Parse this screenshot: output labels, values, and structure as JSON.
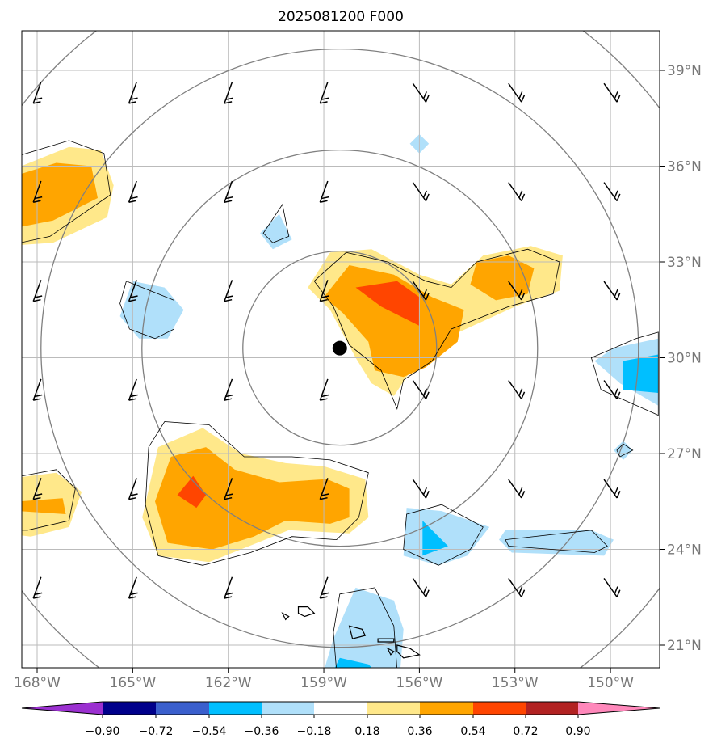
{
  "chart_data": {
    "type": "contour-map",
    "title": "2025081200 F000",
    "lon_range": [
      -169,
      -148.5
    ],
    "lat_range": [
      20.2,
      40.3
    ],
    "x_tick_labels": [
      "168°W",
      "165°W",
      "162°W",
      "159°W",
      "156°W",
      "153°W",
      "150°W"
    ],
    "x_ticks": [
      -168,
      -165,
      -162,
      -159,
      -156,
      -153,
      -150
    ],
    "y_tick_labels": [
      "21°N",
      "24°N",
      "27°N",
      "30°N",
      "33°N",
      "36°N",
      "39°N"
    ],
    "y_ticks": [
      21,
      24,
      27,
      30,
      33,
      36,
      39
    ],
    "grid": true,
    "center_marker": {
      "lon": -158.5,
      "lat": 30.3
    },
    "range_rings_center": {
      "lon": -158.5,
      "lat": 30.3
    },
    "colorbar": {
      "tick_labels": [
        "−0.90",
        "−0.72",
        "−0.54",
        "−0.36",
        "−0.18",
        "0.18",
        "0.36",
        "0.54",
        "0.72",
        "0.90"
      ],
      "colors": [
        "#9b30d0",
        "#00008b",
        "#3a5fcd",
        "#00bfff",
        "#b0e0fa",
        "#ffffff",
        "#ffe88a",
        "#ffa500",
        "#ff4500",
        "#b22222",
        "#ff88bb"
      ],
      "extend": "both"
    },
    "shaded_regions": [
      {
        "level": "0.18–0.36",
        "color": "#ffe88a",
        "polygon": [
          [
            -169,
            35.8
          ],
          [
            -167,
            36.6
          ],
          [
            -166,
            36.5
          ],
          [
            -165.6,
            35.4
          ],
          [
            -165.8,
            34.4
          ],
          [
            -167.5,
            33.6
          ],
          [
            -169,
            33.5
          ]
        ]
      },
      {
        "level": "0.36–0.54",
        "color": "#ffa500",
        "polygon": [
          [
            -169,
            35.6
          ],
          [
            -167.4,
            36.1
          ],
          [
            -166.3,
            36.0
          ],
          [
            -166.1,
            35.0
          ],
          [
            -167.5,
            34.3
          ],
          [
            -169,
            34.0
          ]
        ]
      },
      {
        "level": "0.18–0.36",
        "color": "#ffe88a",
        "polygon": [
          [
            -159.5,
            32.2
          ],
          [
            -158.8,
            33.3
          ],
          [
            -157.5,
            33.4
          ],
          [
            -156,
            32.6
          ],
          [
            -155,
            32.3
          ],
          [
            -154,
            33.2
          ],
          [
            -152.5,
            33.5
          ],
          [
            -151.5,
            33.2
          ],
          [
            -151.6,
            32.1
          ],
          [
            -153.0,
            31.6
          ],
          [
            -155.2,
            30.6
          ],
          [
            -156.2,
            29.7
          ],
          [
            -156.8,
            28.8
          ],
          [
            -157.5,
            29.2
          ],
          [
            -158.0,
            30.0
          ],
          [
            -158.8,
            31.5
          ]
        ]
      },
      {
        "level": "0.36–0.54",
        "color": "#ffa500",
        "polygon": [
          [
            -159.0,
            31.9
          ],
          [
            -158.2,
            32.9
          ],
          [
            -156.8,
            32.6
          ],
          [
            -155.6,
            31.9
          ],
          [
            -154.6,
            31.5
          ],
          [
            -154.8,
            30.5
          ],
          [
            -155.8,
            29.7
          ],
          [
            -156.5,
            29.4
          ],
          [
            -157.4,
            29.6
          ],
          [
            -157.6,
            30.5
          ],
          [
            -158.4,
            31.4
          ]
        ]
      },
      {
        "level": "0.36–0.54",
        "color": "#ffa500",
        "polygon": [
          [
            -154.2,
            33.0
          ],
          [
            -153.2,
            33.2
          ],
          [
            -152.4,
            32.8
          ],
          [
            -152.6,
            32.0
          ],
          [
            -153.6,
            31.8
          ],
          [
            -154.4,
            32.3
          ]
        ]
      },
      {
        "level": "0.54–0.72",
        "color": "#ff4500",
        "polygon": [
          [
            -158.0,
            32.2
          ],
          [
            -156.7,
            32.4
          ],
          [
            -156.0,
            31.9
          ],
          [
            -156.0,
            31.0
          ],
          [
            -157.2,
            31.6
          ]
        ]
      },
      {
        "level": "0.18–0.36",
        "color": "#ffe88a",
        "polygon": [
          [
            -164.2,
            27.2
          ],
          [
            -162.8,
            27.8
          ],
          [
            -161.6,
            27.0
          ],
          [
            -160.2,
            26.7
          ],
          [
            -159.0,
            26.6
          ],
          [
            -157.7,
            26.2
          ],
          [
            -157.6,
            25.0
          ],
          [
            -158.2,
            24.5
          ],
          [
            -160.1,
            24.6
          ],
          [
            -161.1,
            24.2
          ],
          [
            -162.6,
            23.6
          ],
          [
            -164.2,
            23.8
          ],
          [
            -164.7,
            25.0
          ]
        ]
      },
      {
        "level": "0.36–0.54",
        "color": "#ffa500",
        "polygon": [
          [
            -163.8,
            26.9
          ],
          [
            -162.7,
            27.2
          ],
          [
            -161.8,
            26.5
          ],
          [
            -160.4,
            26.1
          ],
          [
            -158.9,
            26.2
          ],
          [
            -158.2,
            25.9
          ],
          [
            -158.2,
            25.0
          ],
          [
            -158.8,
            24.8
          ],
          [
            -160.2,
            24.9
          ],
          [
            -161.2,
            24.4
          ],
          [
            -162.5,
            24.0
          ],
          [
            -163.9,
            24.2
          ],
          [
            -164.3,
            25.5
          ]
        ]
      },
      {
        "level": "0.54–0.72",
        "color": "#ff4500",
        "polygon": [
          [
            -163.1,
            26.3
          ],
          [
            -162.7,
            25.7
          ],
          [
            -163.0,
            25.3
          ],
          [
            -163.6,
            25.7
          ]
        ]
      },
      {
        "level": "0.18–0.36",
        "color": "#ffe88a",
        "polygon": [
          [
            -169,
            26.2
          ],
          [
            -167.4,
            26.4
          ],
          [
            -166.6,
            25.8
          ],
          [
            -167.0,
            24.7
          ],
          [
            -168.2,
            24.4
          ],
          [
            -169,
            24.5
          ]
        ]
      },
      {
        "level": "0.36–0.54",
        "color": "#ffa500",
        "polygon": [
          [
            -168.6,
            25.5
          ],
          [
            -167.2,
            25.6
          ],
          [
            -167.1,
            25.1
          ],
          [
            -168.6,
            25.2
          ]
        ]
      },
      {
        "level": "-0.36–-0.18",
        "color": "#b0e0fa",
        "polygon": [
          [
            -165.0,
            32.4
          ],
          [
            -164.0,
            32.2
          ],
          [
            -163.4,
            31.5
          ],
          [
            -163.9,
            30.6
          ],
          [
            -164.8,
            30.6
          ],
          [
            -165.4,
            31.3
          ]
        ]
      },
      {
        "level": "-0.36–-0.18",
        "color": "#b0e0fa",
        "polygon": [
          [
            -160.4,
            34.5
          ],
          [
            -160.0,
            33.7
          ],
          [
            -160.6,
            33.4
          ],
          [
            -161.0,
            33.9
          ]
        ]
      },
      {
        "level": "-0.36–-0.18",
        "color": "#b0e0fa",
        "polygon": [
          [
            -156.0,
            37.0
          ],
          [
            -155.7,
            36.7
          ],
          [
            -156.0,
            36.4
          ],
          [
            -156.3,
            36.7
          ]
        ]
      },
      {
        "level": "-0.36–-0.18",
        "color": "#b0e0fa",
        "polygon": [
          [
            -148.5,
            30.6
          ],
          [
            -149.9,
            30.3
          ],
          [
            -150.5,
            29.9
          ],
          [
            -149.7,
            29.2
          ],
          [
            -148.5,
            28.5
          ]
        ]
      },
      {
        "level": "-0.54–-0.36",
        "color": "#00bfff",
        "polygon": [
          [
            -148.5,
            30.1
          ],
          [
            -149.6,
            29.9
          ],
          [
            -149.6,
            29.0
          ],
          [
            -148.5,
            28.9
          ]
        ]
      },
      {
        "level": "-0.36–-0.18",
        "color": "#b0e0fa",
        "polygon": [
          [
            -149.6,
            27.4
          ],
          [
            -149.3,
            27.1
          ],
          [
            -149.6,
            26.8
          ],
          [
            -149.9,
            27.1
          ]
        ]
      },
      {
        "level": "-0.36–-0.18",
        "color": "#b0e0fa",
        "polygon": [
          [
            -156.4,
            25.3
          ],
          [
            -155.3,
            25.2
          ],
          [
            -153.8,
            24.7
          ],
          [
            -154.5,
            23.8
          ],
          [
            -155.4,
            23.5
          ],
          [
            -156.5,
            23.8
          ]
        ]
      },
      {
        "level": "-0.54–-0.36",
        "color": "#00bfff",
        "polygon": [
          [
            -155.9,
            24.9
          ],
          [
            -155.1,
            24.1
          ],
          [
            -155.9,
            23.8
          ]
        ]
      },
      {
        "level": "-0.36–-0.18",
        "color": "#b0e0fa",
        "polygon": [
          [
            -153.3,
            24.6
          ],
          [
            -150.6,
            24.6
          ],
          [
            -149.9,
            24.3
          ],
          [
            -150.2,
            23.8
          ],
          [
            -153.1,
            23.9
          ],
          [
            -153.5,
            24.3
          ]
        ]
      },
      {
        "level": "-0.36–-0.18",
        "color": "#b0e0fa",
        "polygon": [
          [
            -158.0,
            22.8
          ],
          [
            -156.8,
            22.4
          ],
          [
            -156.5,
            21.5
          ],
          [
            -156.6,
            20.2
          ],
          [
            -159.0,
            20.2
          ],
          [
            -158.7,
            21.2
          ]
        ]
      },
      {
        "level": "-0.54–-0.36",
        "color": "#00bfff",
        "polygon": [
          [
            -158.5,
            20.6
          ],
          [
            -157.6,
            20.4
          ],
          [
            -157.4,
            20.2
          ],
          [
            -158.7,
            20.2
          ]
        ]
      }
    ]
  }
}
